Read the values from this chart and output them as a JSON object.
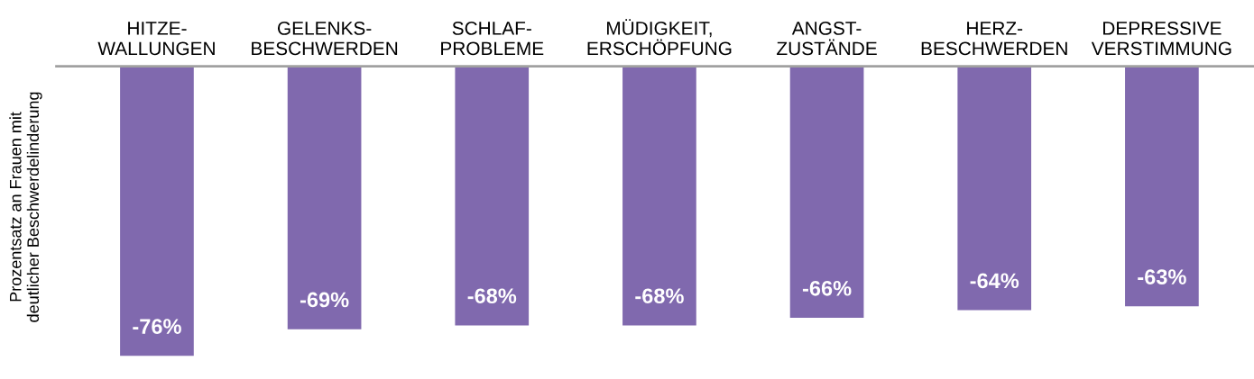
{
  "chart_data": {
    "type": "bar",
    "ylabel": "Prozentsatz an Frauen mit\ndeutlicher Beschwerdelinderung",
    "categories": [
      "HITZE-\nWALLUNGEN",
      "GELENKS-\nBESCHWERDEN",
      "SCHLAF-\nPROBLEME",
      "MÜDIGKEIT,\nERSCHÖPFUNG",
      "ANGST-\nZUSTÄNDE",
      "HERZ-\nBESCHWERDEN",
      "DEPRESSIVE\nVERSTIMMUNG"
    ],
    "values": [
      -76,
      -69,
      -68,
      -68,
      -66,
      -64,
      -63
    ],
    "value_labels": [
      "-76%",
      "-69%",
      "-68%",
      "-68%",
      "-66%",
      "-64%",
      "-63%"
    ],
    "color": "#8069ae",
    "grid": false,
    "legend": false
  }
}
